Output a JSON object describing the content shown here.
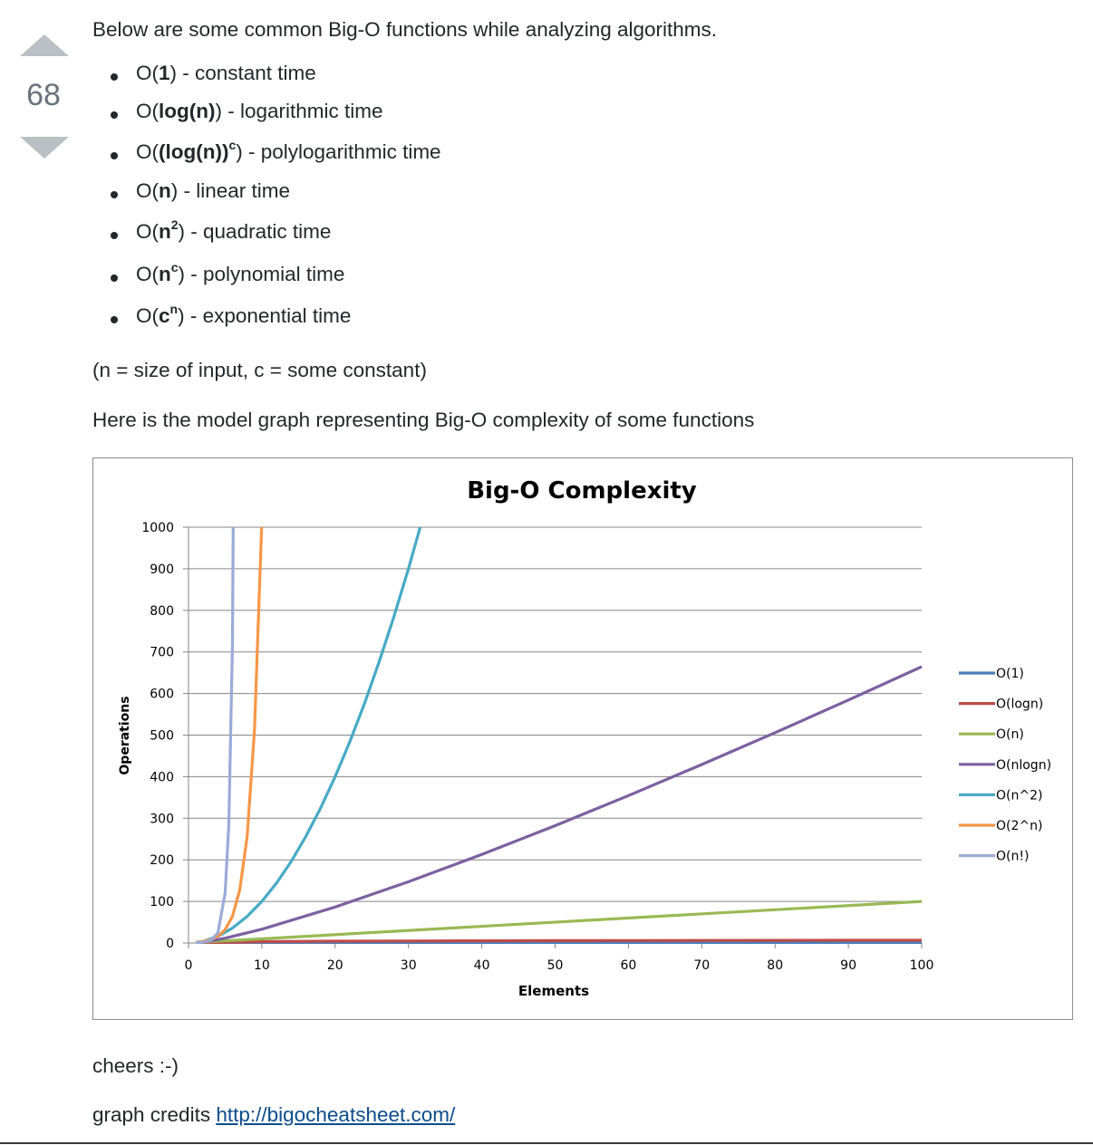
{
  "vote": {
    "count": "68"
  },
  "post": {
    "intro": "Below are some common Big-O functions while analyzing algorithms.",
    "bullets": [
      {
        "pre": "O(",
        "bold": "1",
        "sup": "",
        "post": ") - constant time"
      },
      {
        "pre": "O(",
        "bold": "log(n)",
        "sup": "",
        "post": ") - logarithmic time"
      },
      {
        "pre": "O(",
        "bold": "(log(n))",
        "sup": "c",
        "post": ") - polylogarithmic time"
      },
      {
        "pre": "O(",
        "bold": "n",
        "sup": "",
        "post": ") - linear time"
      },
      {
        "pre": "O(",
        "bold": "n",
        "sup": "2",
        "post": ") - quadratic time"
      },
      {
        "pre": "O(",
        "bold": "n",
        "sup": "c",
        "post": ") - polynomial time"
      },
      {
        "pre": "O(",
        "bold": "c",
        "sup": "n",
        "post": ") - exponential time"
      }
    ],
    "note": "(n = size of input, c = some constant)",
    "graph_intro": "Here is the model graph representing Big-O complexity of some functions",
    "closing": "cheers :-)",
    "credits_label": "graph credits ",
    "credits_link": "http://bigocheatsheet.com/"
  },
  "chart_data": {
    "type": "line",
    "title": "Big-O Complexity",
    "xlabel": "Elements",
    "ylabel": "Operations",
    "xlim": [
      0,
      100
    ],
    "ylim": [
      0,
      1000
    ],
    "xticks": [
      0,
      10,
      20,
      30,
      40,
      50,
      60,
      70,
      80,
      90,
      100
    ],
    "yticks": [
      0,
      100,
      200,
      300,
      400,
      500,
      600,
      700,
      800,
      900,
      1000
    ],
    "grid": true,
    "legend_position": "right",
    "series": [
      {
        "name": "O(1)",
        "color": "#4a7ebb",
        "x": [
          1,
          100
        ],
        "y": [
          1,
          1
        ]
      },
      {
        "name": "O(logn)",
        "color": "#be4b48",
        "x": [
          1,
          10,
          20,
          30,
          40,
          50,
          60,
          70,
          80,
          90,
          100
        ],
        "y": [
          0,
          3.3,
          4.3,
          4.9,
          5.3,
          5.6,
          5.9,
          6.1,
          6.3,
          6.5,
          6.6
        ]
      },
      {
        "name": "O(n)",
        "color": "#98b954",
        "x": [
          1,
          100
        ],
        "y": [
          1,
          100
        ]
      },
      {
        "name": "O(nlogn)",
        "color": "#7d60a0",
        "x": [
          1,
          2,
          3,
          5,
          10,
          20,
          30,
          40,
          50,
          60,
          70,
          80,
          90,
          100
        ],
        "y": [
          0,
          2,
          4.8,
          11.6,
          33.2,
          86.4,
          147.2,
          212.9,
          282.2,
          354.4,
          429.1,
          505.8,
          584.3,
          664.4
        ]
      },
      {
        "name": "O(n^2)",
        "color": "#46aac5",
        "x": [
          1,
          2,
          4,
          6,
          8,
          10,
          12,
          14,
          16,
          18,
          20,
          22,
          24,
          26,
          28,
          30,
          31.6
        ],
        "y": [
          1,
          4,
          16,
          36,
          64,
          100,
          144,
          196,
          256,
          324,
          400,
          484,
          576,
          676,
          784,
          900,
          1000
        ]
      },
      {
        "name": "O(2^n)",
        "color": "#f79646",
        "x": [
          1,
          2,
          3,
          4,
          5,
          6,
          7,
          8,
          9,
          9.97
        ],
        "y": [
          2,
          4,
          8,
          16,
          32,
          64,
          128,
          256,
          512,
          1000
        ]
      },
      {
        "name": "O(n!)",
        "color": "#9aabd8",
        "x": [
          1,
          2,
          3,
          4,
          5,
          5.5,
          6,
          6.1
        ],
        "y": [
          1,
          2,
          6,
          24,
          120,
          287,
          720,
          1000
        ]
      }
    ]
  }
}
